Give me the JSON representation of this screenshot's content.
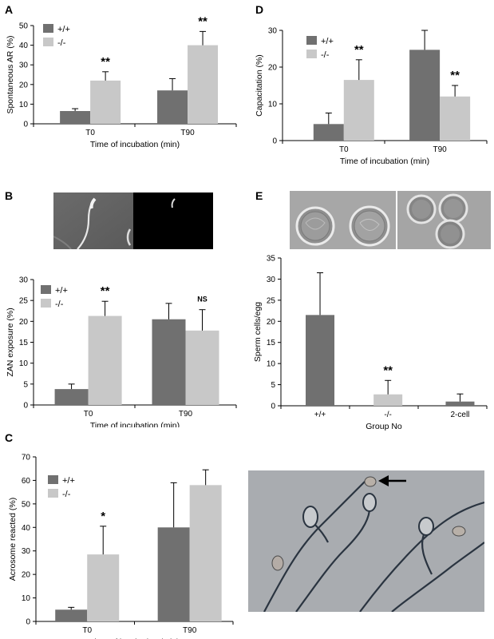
{
  "panels": {
    "A": "A",
    "B": "B",
    "C": "C",
    "D": "D",
    "E": "E"
  },
  "colors": {
    "wt": "#707070",
    "ko": "#c8c8c8"
  },
  "chart_data": [
    {
      "id": "A",
      "type": "bar",
      "categories": [
        "T0",
        "T90"
      ],
      "xlabel": "Time of incubation (min)",
      "ylabel": "Spontaneous AR (%)",
      "ylim": [
        0,
        50
      ],
      "ticks": [
        0,
        10,
        20,
        30,
        40,
        50
      ],
      "series": [
        {
          "name": "+/+",
          "values": [
            6.5,
            17
          ],
          "errors": [
            1.2,
            6
          ]
        },
        {
          "name": "-/-",
          "values": [
            22,
            40
          ],
          "errors": [
            4.5,
            7
          ]
        }
      ],
      "annotations": [
        {
          "category": 0,
          "series": 1,
          "text": "**"
        },
        {
          "category": 1,
          "series": 1,
          "text": "**"
        }
      ],
      "legend": "top-left"
    },
    {
      "id": "D",
      "type": "bar",
      "categories": [
        "T0",
        "T90"
      ],
      "xlabel": "Time of incubation (min)",
      "ylabel": "Capacitation (%)",
      "ylim": [
        0,
        30
      ],
      "ticks": [
        0,
        10,
        20,
        30
      ],
      "series": [
        {
          "name": "+/+",
          "values": [
            4.5,
            24.7
          ],
          "errors": [
            3,
            5.3
          ]
        },
        {
          "name": "-/-",
          "values": [
            16.5,
            12
          ],
          "errors": [
            5.5,
            3
          ]
        }
      ],
      "annotations": [
        {
          "category": 0,
          "series": 1,
          "text": "**"
        },
        {
          "category": 1,
          "series": 1,
          "text": "**"
        }
      ],
      "legend": "top-left"
    },
    {
      "id": "B",
      "type": "bar",
      "categories": [
        "T0",
        "T90"
      ],
      "xlabel": "Time of incubation (min)",
      "ylabel": "ZAN exposure (%)",
      "ylim": [
        0,
        30
      ],
      "ticks": [
        0,
        5,
        10,
        15,
        20,
        25,
        30
      ],
      "series": [
        {
          "name": "+/+",
          "values": [
            3.8,
            20.5
          ],
          "errors": [
            1.2,
            3.8
          ]
        },
        {
          "name": "-/-",
          "values": [
            21.3,
            17.8
          ],
          "errors": [
            3.5,
            5
          ]
        }
      ],
      "annotations": [
        {
          "category": 0,
          "series": 1,
          "text": "**"
        },
        {
          "category": 1,
          "series": 1,
          "text": "NS"
        }
      ],
      "legend": "top-left"
    },
    {
      "id": "C",
      "type": "bar",
      "categories": [
        "T0",
        "T90"
      ],
      "xlabel": "Time of incubation (min)",
      "ylabel": "Acrosome reacted (%)",
      "ylim": [
        0,
        70
      ],
      "ticks": [
        0,
        10,
        20,
        30,
        40,
        50,
        60,
        70
      ],
      "series": [
        {
          "name": "+/+",
          "values": [
            5,
            40
          ],
          "errors": [
            1,
            19
          ]
        },
        {
          "name": "-/-",
          "values": [
            28.5,
            58
          ],
          "errors": [
            12,
            6.5
          ]
        }
      ],
      "annotations": [
        {
          "category": 0,
          "series": 1,
          "text": "*"
        }
      ],
      "legend": "top-left"
    },
    {
      "id": "E",
      "type": "bar",
      "categories": [
        "+/+",
        "-/-",
        "2-cell"
      ],
      "xlabel": "Group No",
      "ylabel": "Sperm cells/egg",
      "ylim": [
        0,
        35
      ],
      "ticks": [
        0,
        5,
        10,
        15,
        20,
        25,
        30,
        35
      ],
      "series": [
        {
          "values": [
            21.5,
            2.7,
            1
          ],
          "errors": [
            10,
            3.3,
            1.8
          ]
        }
      ],
      "bar_colors": [
        "#707070",
        "#c8c8c8",
        "#707070"
      ],
      "annotations": [
        {
          "category": 1,
          "series": 0,
          "text": "**"
        }
      ]
    }
  ]
}
